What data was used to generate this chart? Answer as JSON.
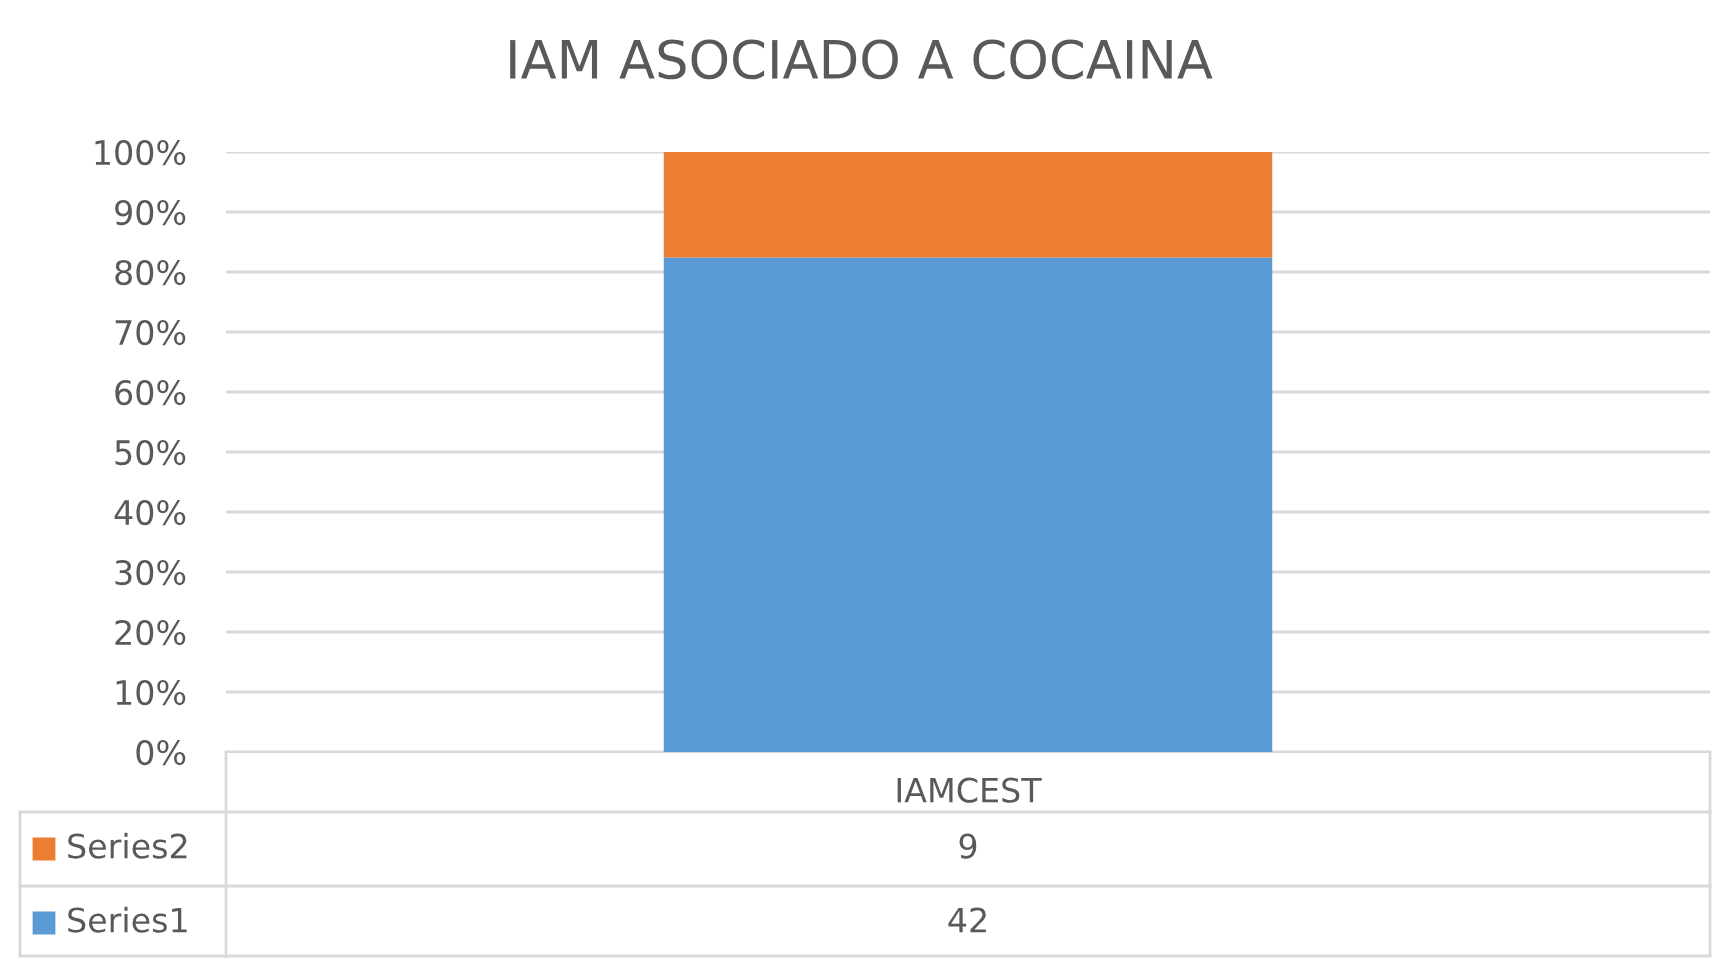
{
  "chart_data": {
    "type": "bar",
    "title": "IAM ASOCIADO A COCAINA",
    "categories": [
      "IAMCEST"
    ],
    "stacked": true,
    "series": [
      {
        "name": "Series1",
        "color": "#5b9bd5",
        "values": [
          82.4
        ]
      },
      {
        "name": "Series2",
        "color": "#ed7d31",
        "values": [
          17.6
        ]
      }
    ],
    "annotations": [
      "42",
      "9"
    ],
    "ylim": [
      0,
      100
    ],
    "yticks": [
      {
        "value": 0,
        "label": "0%"
      },
      {
        "value": 10,
        "label": "10%"
      },
      {
        "value": 20,
        "label": "20%"
      },
      {
        "value": 30,
        "label": "30%"
      },
      {
        "value": 40,
        "label": "40%"
      },
      {
        "value": 50,
        "label": "50%"
      },
      {
        "value": 60,
        "label": "60%"
      },
      {
        "value": 70,
        "label": "70%"
      },
      {
        "value": 80,
        "label": "80%"
      },
      {
        "value": 90,
        "label": "90%"
      },
      {
        "value": 100,
        "label": "100%"
      }
    ],
    "grid": "y",
    "legend": "bottom"
  }
}
